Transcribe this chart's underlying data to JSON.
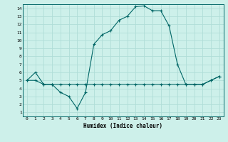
{
  "xlabel": "Humidex (Indice chaleur)",
  "background_color": "#cdf0ea",
  "grid_color": "#b0ddd8",
  "line_color": "#006666",
  "xlim": [
    -0.5,
    23.5
  ],
  "ylim": [
    0.5,
    14.5
  ],
  "xticks": [
    0,
    1,
    2,
    3,
    4,
    5,
    6,
    7,
    8,
    9,
    10,
    11,
    12,
    13,
    14,
    15,
    16,
    17,
    18,
    19,
    20,
    21,
    22,
    23
  ],
  "yticks": [
    1,
    2,
    3,
    4,
    5,
    6,
    7,
    8,
    9,
    10,
    11,
    12,
    13,
    14
  ],
  "line1_x": [
    0,
    1,
    2,
    3,
    4,
    5,
    6,
    7,
    8,
    9,
    10,
    11,
    12,
    13,
    14,
    15,
    16,
    17,
    18,
    19,
    20,
    21,
    22,
    23
  ],
  "line1_y": [
    5.0,
    5.0,
    4.5,
    4.5,
    4.5,
    4.5,
    4.5,
    4.5,
    4.5,
    4.5,
    4.5,
    4.5,
    4.5,
    4.5,
    4.5,
    4.5,
    4.5,
    4.5,
    4.5,
    4.5,
    4.5,
    4.5,
    5.0,
    5.5
  ],
  "line2_x": [
    0,
    1,
    2,
    3,
    4,
    5,
    6,
    7,
    8,
    9,
    10,
    11,
    12,
    13,
    14,
    15,
    16,
    17,
    18,
    19,
    20,
    21,
    22,
    23
  ],
  "line2_y": [
    5.0,
    6.0,
    4.5,
    4.5,
    3.5,
    3.0,
    1.5,
    3.5,
    9.5,
    10.7,
    11.2,
    12.5,
    13.0,
    14.2,
    14.3,
    13.7,
    13.7,
    11.8,
    7.0,
    4.5,
    4.5,
    4.5,
    5.0,
    5.5
  ]
}
